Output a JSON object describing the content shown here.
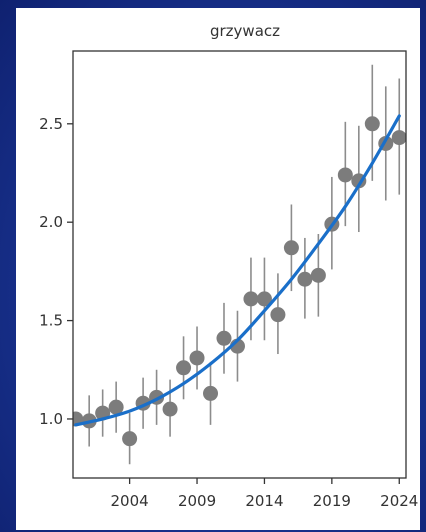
{
  "chart_data": {
    "type": "scatter",
    "title": "grzywacz",
    "xlabel": "",
    "ylabel": "",
    "xlim": [
      1999.8,
      2024.5
    ],
    "ylim": [
      0.7,
      2.87
    ],
    "x_ticks": [
      2004,
      2009,
      2014,
      2019,
      2024
    ],
    "x_tick_labels": [
      "2004",
      "2009",
      "2014",
      "2019",
      "2024"
    ],
    "y_ticks": [
      1.0,
      1.5,
      2.0,
      2.5
    ],
    "y_tick_labels": [
      "1.0",
      "1.5",
      "2.0",
      "2.5"
    ],
    "grid": false,
    "points": [
      {
        "x": 2000,
        "y": 1.0,
        "lo": 0.98,
        "hi": 1.02
      },
      {
        "x": 2001,
        "y": 0.99,
        "lo": 0.86,
        "hi": 1.12
      },
      {
        "x": 2002,
        "y": 1.03,
        "lo": 0.91,
        "hi": 1.15
      },
      {
        "x": 2003,
        "y": 1.06,
        "lo": 0.93,
        "hi": 1.19
      },
      {
        "x": 2004,
        "y": 0.9,
        "lo": 0.77,
        "hi": 1.03
      },
      {
        "x": 2005,
        "y": 1.08,
        "lo": 0.95,
        "hi": 1.21
      },
      {
        "x": 2006,
        "y": 1.11,
        "lo": 0.97,
        "hi": 1.25
      },
      {
        "x": 2007,
        "y": 1.05,
        "lo": 0.91,
        "hi": 1.2
      },
      {
        "x": 2008,
        "y": 1.26,
        "lo": 1.1,
        "hi": 1.42
      },
      {
        "x": 2009,
        "y": 1.31,
        "lo": 1.15,
        "hi": 1.47
      },
      {
        "x": 2010,
        "y": 1.13,
        "lo": 0.97,
        "hi": 1.29
      },
      {
        "x": 2011,
        "y": 1.41,
        "lo": 1.23,
        "hi": 1.59
      },
      {
        "x": 2012,
        "y": 1.37,
        "lo": 1.19,
        "hi": 1.55
      },
      {
        "x": 2013,
        "y": 1.61,
        "lo": 1.4,
        "hi": 1.82
      },
      {
        "x": 2014,
        "y": 1.61,
        "lo": 1.4,
        "hi": 1.82
      },
      {
        "x": 2015,
        "y": 1.53,
        "lo": 1.33,
        "hi": 1.74
      },
      {
        "x": 2016,
        "y": 1.87,
        "lo": 1.65,
        "hi": 2.09
      },
      {
        "x": 2017,
        "y": 1.71,
        "lo": 1.51,
        "hi": 1.92
      },
      {
        "x": 2018,
        "y": 1.73,
        "lo": 1.52,
        "hi": 1.94
      },
      {
        "x": 2019,
        "y": 1.99,
        "lo": 1.76,
        "hi": 2.23
      },
      {
        "x": 2020,
        "y": 2.24,
        "lo": 1.98,
        "hi": 2.51
      },
      {
        "x": 2021,
        "y": 2.21,
        "lo": 1.95,
        "hi": 2.49
      },
      {
        "x": 2022,
        "y": 2.5,
        "lo": 2.21,
        "hi": 2.8
      },
      {
        "x": 2023,
        "y": 2.4,
        "lo": 2.11,
        "hi": 2.69
      },
      {
        "x": 2024,
        "y": 2.43,
        "lo": 2.14,
        "hi": 2.73
      }
    ],
    "trend": {
      "x": [
        2000,
        2002,
        2004,
        2006,
        2008,
        2010,
        2012,
        2014,
        2016,
        2018,
        2020,
        2022,
        2024
      ],
      "y": [
        0.97,
        1.0,
        1.04,
        1.1,
        1.18,
        1.28,
        1.4,
        1.55,
        1.71,
        1.89,
        2.08,
        2.3,
        2.54
      ]
    },
    "colors": {
      "points": "#7c7c7c",
      "error_bars": "#8c8c8c",
      "trend": "#1a6fc9",
      "axis": "#333333"
    }
  }
}
